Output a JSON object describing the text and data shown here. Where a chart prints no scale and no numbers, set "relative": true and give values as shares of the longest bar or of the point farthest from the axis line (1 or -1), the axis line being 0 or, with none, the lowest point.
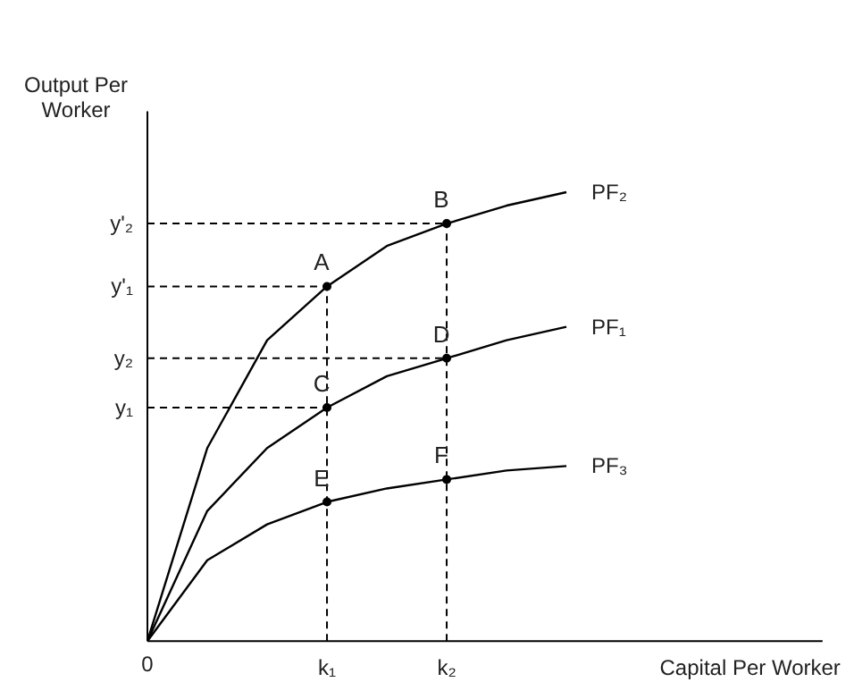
{
  "chart_data": {
    "type": "line",
    "relative": true,
    "xlabel": "Capital Per Worker",
    "ylabel": "Output Per Worker",
    "categories": [
      "0",
      null,
      null,
      "k₁",
      null,
      "k₂",
      null,
      null
    ],
    "series": [
      {
        "name": "PF₂",
        "color": "#000000",
        "values": [
          0,
          0.43,
          0.67,
          0.79,
          0.88,
          0.93,
          0.97,
          1.0
        ]
      },
      {
        "name": "PF₁",
        "color": "#000000",
        "values": [
          0,
          0.29,
          0.43,
          0.52,
          0.59,
          0.63,
          0.67,
          0.7
        ]
      },
      {
        "name": "PF₃",
        "color": "#000000",
        "values": [
          0,
          0.18,
          0.26,
          0.31,
          0.34,
          0.36,
          0.38,
          0.39
        ]
      }
    ],
    "annotations": [
      {
        "text": "A",
        "x": "k₁",
        "y": 0.79
      },
      {
        "text": "B",
        "x": "k₂",
        "y": 0.93
      },
      {
        "text": "C",
        "x": "k₁",
        "y": 0.52
      },
      {
        "text": "D",
        "x": "k₂",
        "y": 0.63
      },
      {
        "text": "E",
        "x": "k₁",
        "y": 0.31
      },
      {
        "text": "F",
        "x": "k₂",
        "y": 0.36
      }
    ],
    "ref_lines": [
      {
        "axis": "x",
        "value": "k₁",
        "line_style": "dashed"
      },
      {
        "axis": "x",
        "value": "k₂",
        "line_style": "dashed"
      },
      {
        "axis": "y",
        "value": 0.93,
        "label": "y'₂",
        "line_style": "dashed"
      },
      {
        "axis": "y",
        "value": 0.79,
        "label": "y'₁",
        "line_style": "dashed"
      },
      {
        "axis": "y",
        "value": 0.63,
        "label": "y₂",
        "line_style": "dashed"
      },
      {
        "axis": "y",
        "value": 0.52,
        "label": "y₁",
        "line_style": "dashed"
      }
    ],
    "line_style": "solid",
    "grid": false
  }
}
